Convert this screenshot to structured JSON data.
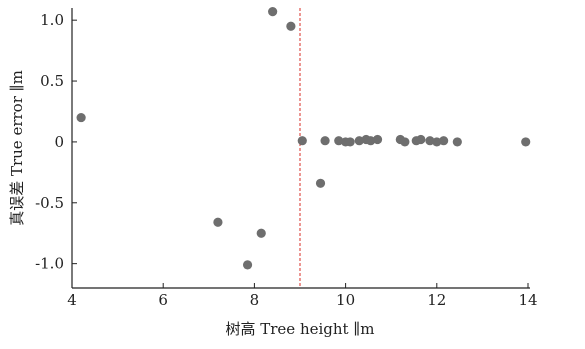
{
  "chart_data": {
    "type": "scatter",
    "title": "",
    "xlabel": "树高 Tree height ∥m",
    "ylabel": "真误差 True error ∥m",
    "xlim": [
      4,
      14
    ],
    "ylim": [
      -1.2,
      1.1
    ],
    "x_ticks": [
      4,
      6,
      8,
      10,
      12,
      14
    ],
    "x_tick_labels": [
      "4",
      "6",
      "8",
      "10",
      "12",
      "14"
    ],
    "y_ticks": [
      1.0,
      0.5,
      0,
      -0.5,
      -1.0
    ],
    "y_tick_labels": [
      "1.0",
      "0.5",
      "0",
      "-0.5",
      "-1.0"
    ],
    "grid": false,
    "legend": "none",
    "reference_line": {
      "axis": "x",
      "value": 9.0,
      "style": "dashed",
      "color": "#e0504a"
    },
    "point_color": "#6e6e6e",
    "series": [
      {
        "points": [
          [
            4.2,
            0.2
          ],
          [
            7.2,
            -0.66
          ],
          [
            7.85,
            -1.01
          ],
          [
            8.15,
            -0.75
          ],
          [
            8.4,
            1.07
          ],
          [
            8.8,
            0.95
          ],
          [
            9.05,
            0.01
          ],
          [
            9.45,
            -0.34
          ],
          [
            9.55,
            0.01
          ],
          [
            9.85,
            0.01
          ],
          [
            10.0,
            0.0
          ],
          [
            10.1,
            0.0
          ],
          [
            10.3,
            0.01
          ],
          [
            10.45,
            0.02
          ],
          [
            10.55,
            0.01
          ],
          [
            10.7,
            0.02
          ],
          [
            11.2,
            0.02
          ],
          [
            11.3,
            0.0
          ],
          [
            11.55,
            0.01
          ],
          [
            11.65,
            0.02
          ],
          [
            11.85,
            0.01
          ],
          [
            12.0,
            0.0
          ],
          [
            12.15,
            0.01
          ],
          [
            12.45,
            0.0
          ],
          [
            13.95,
            0.0
          ]
        ]
      }
    ]
  }
}
